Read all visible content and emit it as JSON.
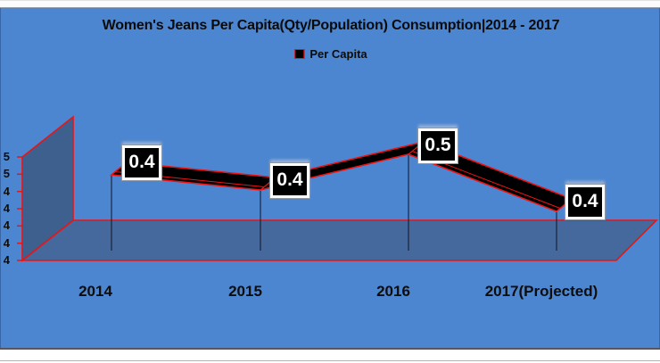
{
  "chart": {
    "title": "Women's Jeans Per Capita(Qty/Population) Consumption|2014 - 2017",
    "legend": {
      "label": "Per Capita"
    },
    "colors": {
      "background": "#4d86d0",
      "wall": "#3e608e",
      "floor": "#45689d",
      "outline_red": "#ec1313",
      "series_black": "#000000",
      "label_box_bg": "#000000",
      "label_box_border": "#ffffff",
      "text": "#0d0d0d"
    },
    "x_axis": {
      "labels": [
        "2014",
        "2015",
        "2016",
        "2017(Projected)"
      ]
    },
    "y_axis": {
      "visible_tick_labels": [
        "5",
        "5",
        "4",
        "4",
        "4",
        "4",
        "4"
      ]
    }
  },
  "chart_data": {
    "type": "line",
    "style": "3d-ribbon",
    "title": "Women's Jeans Per Capita(Qty/Population) Consumption|2014 - 2017",
    "categories": [
      "2014",
      "2015",
      "2016",
      "2017(Projected)"
    ],
    "series": [
      {
        "name": "Per Capita",
        "values": [
          0.4,
          0.4,
          0.5,
          0.4
        ]
      }
    ],
    "data_labels": [
      "0.4",
      "0.4",
      "0.5",
      "0.4"
    ],
    "legend_position": "top",
    "grid": false,
    "y_axis_visible_tick_labels": [
      "5",
      "5",
      "4",
      "4",
      "4",
      "4",
      "4"
    ]
  }
}
